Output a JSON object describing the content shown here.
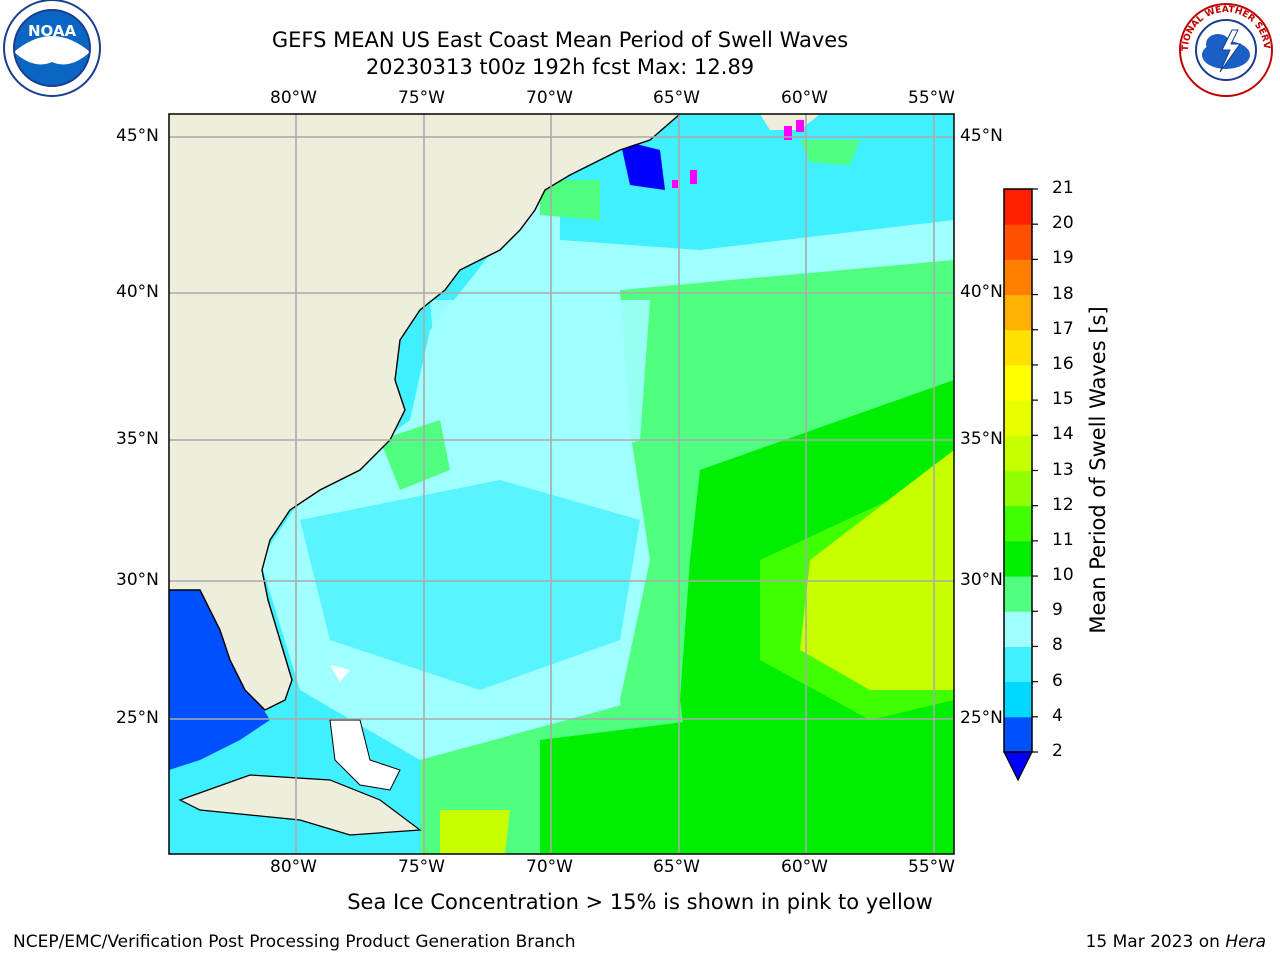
{
  "title": {
    "line1": "GEFS MEAN US East Coast Mean Period of Swell Waves",
    "line2": "20230313 t00z 192h fcst   Max: 12.89"
  },
  "logos": {
    "left": {
      "icon": "noaa-logo",
      "text": "NOAA"
    },
    "right": {
      "icon": "nws-logo",
      "text": "NATIONAL WEATHER SERVICE"
    }
  },
  "map": {
    "lon_labels": [
      "80°W",
      "75°W",
      "70°W",
      "65°W",
      "60°W",
      "55°W"
    ],
    "lat_labels": [
      "45°N",
      "40°N",
      "35°N",
      "30°N",
      "25°N"
    ]
  },
  "colorbar": {
    "label": "Mean Period of Swell Waves [s]",
    "ticks": [
      "2",
      "4",
      "6",
      "8",
      "9",
      "10",
      "11",
      "12",
      "13",
      "14",
      "15",
      "16",
      "17",
      "18",
      "19",
      "20",
      "21"
    ],
    "colors": [
      "#0050ff",
      "#00d8ff",
      "#40f0ff",
      "#a0ffff",
      "#50ff80",
      "#00ee00",
      "#40ff00",
      "#90ff00",
      "#c8ff00",
      "#e8ff00",
      "#ffff00",
      "#ffe000",
      "#ffb000",
      "#ff8000",
      "#ff5000",
      "#ff2000"
    ],
    "extend_color": "#0000ff"
  },
  "footer": {
    "note": "Sea Ice Concentration > 15% is shown in pink to yellow",
    "credit": "NCEP/EMC/Verification Post Processing Product Generation Branch",
    "date": "15 Mar 2023 on",
    "host": "Hera"
  }
}
